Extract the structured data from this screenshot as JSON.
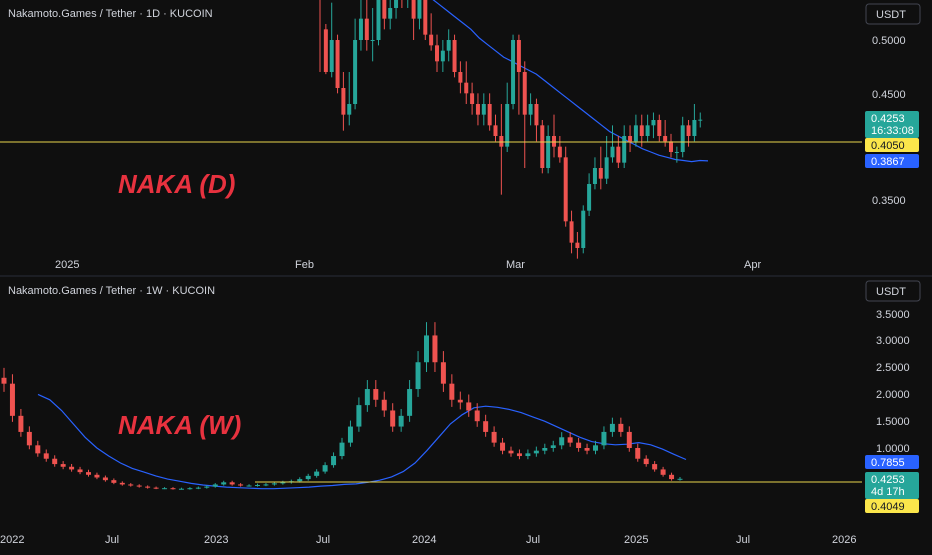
{
  "colors": {
    "background": "#0f0f0f",
    "up": "#26a69a",
    "down": "#ef5350",
    "ma": "#2962ff",
    "hline": "#e8d44d",
    "label_red": "#e8323f",
    "separator": "#2a2e39"
  },
  "panels": [
    {
      "title": "Nakamoto.Games / Tether · 1D · KUCOIN",
      "unit_button": "USDT",
      "overlay_label": "NAKA (D)",
      "price_ticks": [
        "0.5000",
        "0.4500",
        "0.3500"
      ],
      "time_labels": [
        "2025",
        "Feb",
        "Mar",
        "Apr"
      ],
      "badges": {
        "last_price": "0.4253",
        "countdown": "16:33:08",
        "hline": "0.4050",
        "ma": "0.3867"
      }
    },
    {
      "title": "Nakamoto.Games / Tether · 1W · KUCOIN",
      "unit_button": "USDT",
      "overlay_label": "NAKA (W)",
      "price_ticks": [
        "3.5000",
        "3.0000",
        "2.5000",
        "2.0000",
        "1.5000",
        "1.0000"
      ],
      "time_labels": [
        "2022",
        "Jul",
        "2023",
        "Jul",
        "2024",
        "Jul",
        "2025",
        "Jul",
        "2026"
      ],
      "badges": {
        "ma": "0.7855",
        "last_price": "0.4253",
        "countdown": "4d 17h",
        "hline": "0.4049"
      }
    }
  ],
  "chart_data": [
    {
      "type": "candlestick",
      "title": "Nakamoto.Games / Tether · 1D · KUCOIN",
      "ylabel": "USDT",
      "y_ticks": [
        0.35,
        0.45,
        0.5
      ],
      "x_ticks": [
        "2025",
        "Feb",
        "Mar",
        "Apr"
      ],
      "horizontal_line": 0.405,
      "moving_average_last": 0.3867,
      "last_price": 0.4253,
      "ohlc": [
        [
          0.56,
          0.54,
          0.552,
          0.47
        ],
        [
          0.51,
          0.47,
          0.515,
          0.468
        ],
        [
          0.47,
          0.5,
          0.535,
          0.465
        ],
        [
          0.5,
          0.455,
          0.505,
          0.45
        ],
        [
          0.455,
          0.43,
          0.47,
          0.415
        ],
        [
          0.43,
          0.44,
          0.47,
          0.42
        ],
        [
          0.44,
          0.5,
          0.52,
          0.435
        ],
        [
          0.5,
          0.52,
          0.55,
          0.49
        ],
        [
          0.52,
          0.5,
          0.54,
          0.49
        ],
        [
          0.5,
          0.5,
          0.53,
          0.48
        ],
        [
          0.5,
          0.54,
          0.56,
          0.495
        ],
        [
          0.54,
          0.52,
          0.56,
          0.51
        ],
        [
          0.52,
          0.53,
          0.55,
          0.51
        ],
        [
          0.53,
          0.545,
          0.56,
          0.52
        ],
        [
          0.545,
          0.54,
          0.56,
          0.53
        ],
        [
          0.54,
          0.545,
          0.56,
          0.53
        ],
        [
          0.545,
          0.52,
          0.555,
          0.5
        ],
        [
          0.52,
          0.54,
          0.56,
          0.51
        ],
        [
          0.54,
          0.505,
          0.55,
          0.5
        ],
        [
          0.505,
          0.495,
          0.525,
          0.49
        ],
        [
          0.495,
          0.48,
          0.505,
          0.47
        ],
        [
          0.48,
          0.49,
          0.5,
          0.47
        ],
        [
          0.49,
          0.5,
          0.51,
          0.48
        ],
        [
          0.5,
          0.47,
          0.505,
          0.465
        ],
        [
          0.47,
          0.46,
          0.48,
          0.45
        ],
        [
          0.46,
          0.45,
          0.48,
          0.44
        ],
        [
          0.45,
          0.44,
          0.46,
          0.43
        ],
        [
          0.44,
          0.43,
          0.45,
          0.42
        ],
        [
          0.43,
          0.44,
          0.45,
          0.42
        ],
        [
          0.44,
          0.42,
          0.45,
          0.415
        ],
        [
          0.42,
          0.41,
          0.43,
          0.405
        ],
        [
          0.41,
          0.4,
          0.44,
          0.355
        ],
        [
          0.4,
          0.44,
          0.46,
          0.395
        ],
        [
          0.44,
          0.5,
          0.505,
          0.435
        ],
        [
          0.5,
          0.47,
          0.505,
          0.43
        ],
        [
          0.47,
          0.43,
          0.48,
          0.38
        ],
        [
          0.43,
          0.44,
          0.45,
          0.42
        ],
        [
          0.44,
          0.42,
          0.445,
          0.405
        ],
        [
          0.42,
          0.38,
          0.425,
          0.375
        ],
        [
          0.38,
          0.41,
          0.42,
          0.375
        ],
        [
          0.41,
          0.4,
          0.43,
          0.39
        ],
        [
          0.4,
          0.39,
          0.41,
          0.385
        ],
        [
          0.39,
          0.33,
          0.4,
          0.325
        ],
        [
          0.33,
          0.31,
          0.34,
          0.3
        ],
        [
          0.31,
          0.305,
          0.32,
          0.295
        ],
        [
          0.305,
          0.34,
          0.345,
          0.3
        ],
        [
          0.34,
          0.365,
          0.375,
          0.335
        ],
        [
          0.365,
          0.38,
          0.39,
          0.36
        ],
        [
          0.38,
          0.37,
          0.4,
          0.36
        ],
        [
          0.37,
          0.39,
          0.41,
          0.365
        ],
        [
          0.39,
          0.4,
          0.42,
          0.385
        ],
        [
          0.4,
          0.385,
          0.41,
          0.38
        ],
        [
          0.385,
          0.41,
          0.42,
          0.38
        ],
        [
          0.41,
          0.405,
          0.42,
          0.395
        ],
        [
          0.405,
          0.42,
          0.43,
          0.4
        ],
        [
          0.42,
          0.41,
          0.43,
          0.4
        ],
        [
          0.41,
          0.42,
          0.43,
          0.405
        ],
        [
          0.42,
          0.425,
          0.432,
          0.408
        ],
        [
          0.425,
          0.41,
          0.43,
          0.405
        ],
        [
          0.41,
          0.405,
          0.425,
          0.4
        ],
        [
          0.405,
          0.395,
          0.412,
          0.39
        ],
        [
          0.395,
          0.395,
          0.4,
          0.385
        ],
        [
          0.395,
          0.42,
          0.428,
          0.39
        ],
        [
          0.42,
          0.41,
          0.425,
          0.4
        ],
        [
          0.41,
          0.425,
          0.44,
          0.405
        ],
        [
          0.425,
          0.4253,
          0.432,
          0.418
        ]
      ],
      "moving_average": [
        0.54,
        0.534,
        0.528,
        0.522,
        0.516,
        0.51,
        0.502,
        0.496,
        0.49,
        0.484,
        0.48,
        0.476,
        0.472,
        0.468,
        0.462,
        0.456,
        0.45,
        0.444,
        0.438,
        0.432,
        0.426,
        0.42,
        0.414,
        0.41,
        0.406,
        0.402,
        0.398,
        0.395,
        0.392,
        0.39,
        0.388,
        0.387,
        0.386,
        0.387,
        0.3867
      ]
    },
    {
      "type": "candlestick",
      "title": "Nakamoto.Games / Tether · 1W · KUCOIN",
      "ylabel": "USDT",
      "y_ticks": [
        1.0,
        1.5,
        2.0,
        2.5,
        3.0,
        3.5
      ],
      "x_ticks": [
        "2022",
        "Jul",
        "2023",
        "Jul",
        "2024",
        "Jul",
        "2025",
        "Jul",
        "2026"
      ],
      "horizontal_line": 0.4049,
      "moving_average_last": 0.7855,
      "last_price": 0.4253,
      "close_series": [
        2.2,
        1.6,
        1.3,
        1.05,
        0.9,
        0.8,
        0.7,
        0.65,
        0.6,
        0.55,
        0.5,
        0.45,
        0.4,
        0.35,
        0.32,
        0.3,
        0.28,
        0.26,
        0.25,
        0.25,
        0.24,
        0.24,
        0.25,
        0.26,
        0.28,
        0.32,
        0.36,
        0.32,
        0.3,
        0.3,
        0.31,
        0.32,
        0.34,
        0.36,
        0.38,
        0.42,
        0.48,
        0.56,
        0.68,
        0.85,
        1.1,
        1.4,
        1.8,
        2.1,
        1.9,
        1.7,
        1.4,
        1.6,
        2.1,
        2.6,
        3.1,
        2.6,
        2.2,
        1.9,
        1.85,
        1.7,
        1.5,
        1.3,
        1.1,
        0.95,
        0.9,
        0.85,
        0.9,
        0.95,
        1.0,
        1.05,
        1.2,
        1.1,
        1.0,
        0.95,
        1.05,
        1.3,
        1.45,
        1.3,
        1.0,
        0.8,
        0.7,
        0.6,
        0.5,
        0.42,
        0.4253
      ],
      "moving_average": [
        2.0,
        1.9,
        1.7,
        1.45,
        1.2,
        1.0,
        0.85,
        0.72,
        0.62,
        0.55,
        0.48,
        0.42,
        0.38,
        0.34,
        0.31,
        0.29,
        0.27,
        0.26,
        0.25,
        0.24,
        0.24,
        0.25,
        0.26,
        0.27,
        0.29,
        0.3,
        0.32,
        0.33,
        0.36,
        0.4,
        0.46,
        0.56,
        0.72,
        0.95,
        1.2,
        1.45,
        1.62,
        1.75,
        1.78,
        1.76,
        1.72,
        1.66,
        1.58,
        1.5,
        1.4,
        1.3,
        1.2,
        1.12,
        1.08,
        1.06,
        1.07,
        1.1,
        1.06,
        0.98,
        0.88,
        0.7855
      ]
    }
  ]
}
